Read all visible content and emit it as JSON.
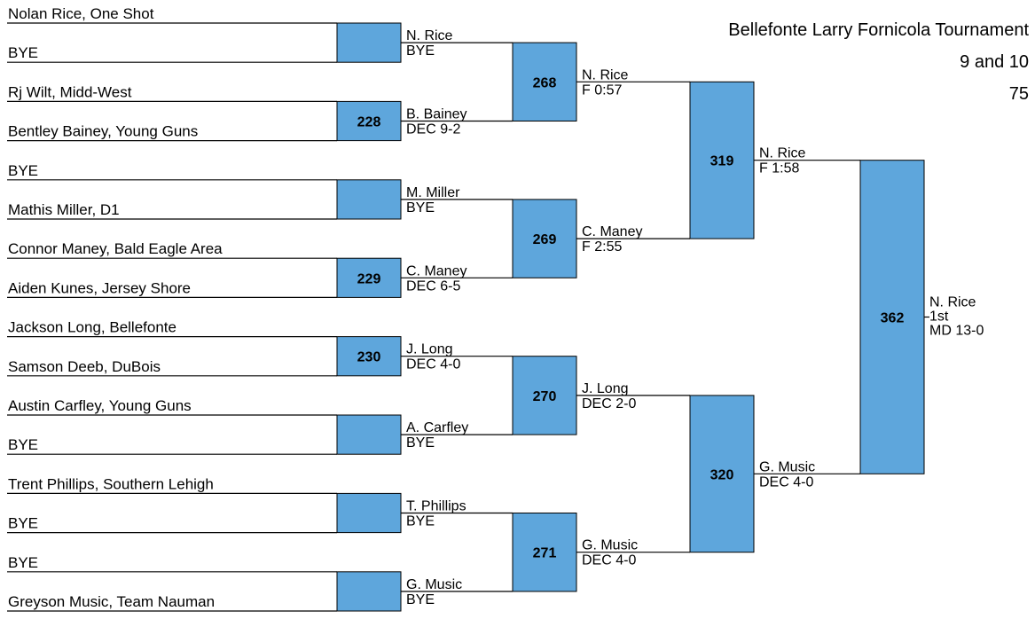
{
  "title": [
    "Bellefonte Larry Fornicola Tournament",
    "9 and 10",
    "75"
  ],
  "entrants": [
    "Nolan Rice, One Shot",
    "BYE",
    "Rj Wilt, Midd-West",
    "Bentley Bainey, Young Guns",
    "BYE",
    "Mathis Miller, D1",
    "Connor Maney, Bald Eagle Area",
    "Aiden Kunes, Jersey Shore",
    "Jackson Long, Bellefonte",
    "Samson Deeb, DuBois",
    "Austin Carfley, Young Guns",
    "BYE",
    "Trent Phillips, Southern Lehigh",
    "BYE",
    "BYE",
    "Greyson Music, Team Nauman"
  ],
  "rounds": [
    {
      "bouts": [
        {
          "winner": "N. Rice",
          "result": "BYE"
        },
        {
          "number": 228,
          "winner": "B. Bainey",
          "result": "DEC 9-2"
        },
        {
          "winner": "M. Miller",
          "result": "BYE"
        },
        {
          "number": 229,
          "winner": "C. Maney",
          "result": "DEC 6-5"
        },
        {
          "number": 230,
          "winner": "J. Long",
          "result": "DEC 4-0"
        },
        {
          "winner": "A. Carfley",
          "result": "BYE"
        },
        {
          "winner": "T. Phillips",
          "result": "BYE"
        },
        {
          "winner": "G. Music",
          "result": "BYE"
        }
      ]
    },
    {
      "bouts": [
        {
          "number": 268,
          "winner": "N. Rice",
          "result": "F 0:57"
        },
        {
          "number": 269,
          "winner": "C. Maney",
          "result": "F 2:55"
        },
        {
          "number": 270,
          "winner": "J. Long",
          "result": "DEC 2-0"
        },
        {
          "number": 271,
          "winner": "G. Music",
          "result": "DEC 4-0"
        }
      ]
    },
    {
      "bouts": [
        {
          "number": 319,
          "winner": "N. Rice",
          "result": "F 1:58"
        },
        {
          "number": 320,
          "winner": "G. Music",
          "result": "DEC 4-0"
        }
      ]
    },
    {
      "bouts": [
        {
          "number": 362,
          "winner": "N. Rice",
          "place": "1st",
          "result": "MD 13-0"
        }
      ]
    }
  ]
}
